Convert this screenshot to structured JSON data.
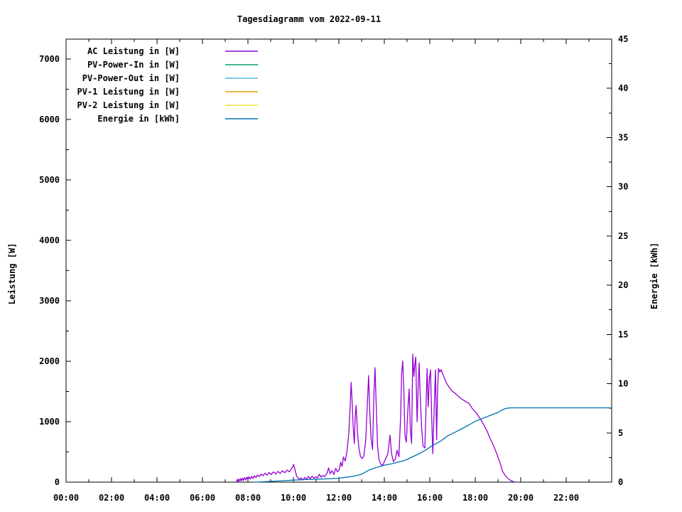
{
  "title": "Tagesdiagramm vom 2022-09-11",
  "chart_data": {
    "type": "line",
    "title": "Tagesdiagramm vom 2022-09-11",
    "x_axis": {
      "label": "",
      "range_hours": [
        0,
        24
      ],
      "major_tick_hours": 2,
      "minor_tick_hours": 1,
      "tick_labels": [
        "00:00",
        "02:00",
        "04:00",
        "06:00",
        "08:00",
        "10:00",
        "12:00",
        "14:00",
        "16:00",
        "18:00",
        "20:00",
        "22:00"
      ]
    },
    "y_left": {
      "label": "Leistung [W]",
      "range": [
        0,
        7330
      ],
      "major_tick": 1000,
      "minor_tick": 500,
      "tick_labels": [
        "0",
        "1000",
        "2000",
        "3000",
        "4000",
        "5000",
        "6000",
        "7000"
      ]
    },
    "y_right": {
      "label": "Energie [kWh]",
      "range": [
        0,
        45
      ],
      "major_tick": 5,
      "minor_tick": 2.5,
      "tick_labels": [
        "0",
        "5",
        "10",
        "15",
        "20",
        "25",
        "30",
        "35",
        "40",
        "45"
      ]
    },
    "grid": false,
    "legend_position": "top-left-inside",
    "series": [
      {
        "name": "AC Leistung in [W]",
        "color": "#9400d3",
        "axis": "left",
        "points": [
          [
            7.5,
            5
          ],
          [
            7.53,
            45
          ],
          [
            7.56,
            12
          ],
          [
            7.6,
            50
          ],
          [
            7.64,
            18
          ],
          [
            7.68,
            60
          ],
          [
            7.72,
            22
          ],
          [
            7.76,
            65
          ],
          [
            7.8,
            28
          ],
          [
            7.85,
            75
          ],
          [
            7.9,
            35
          ],
          [
            7.95,
            80
          ],
          [
            8.0,
            45
          ],
          [
            8.05,
            88
          ],
          [
            8.1,
            52
          ],
          [
            8.16,
            95
          ],
          [
            8.22,
            60
          ],
          [
            8.28,
            105
          ],
          [
            8.35,
            75
          ],
          [
            8.42,
            118
          ],
          [
            8.5,
            92
          ],
          [
            8.58,
            135
          ],
          [
            8.66,
            105
          ],
          [
            8.75,
            150
          ],
          [
            8.84,
            115
          ],
          [
            8.93,
            160
          ],
          [
            9.02,
            125
          ],
          [
            9.12,
            170
          ],
          [
            9.22,
            135
          ],
          [
            9.32,
            178
          ],
          [
            9.42,
            145
          ],
          [
            9.52,
            188
          ],
          [
            9.62,
            155
          ],
          [
            9.72,
            200
          ],
          [
            9.82,
            170
          ],
          [
            9.9,
            215
          ],
          [
            9.97,
            250
          ],
          [
            10.0,
            292
          ],
          [
            10.04,
            255
          ],
          [
            10.09,
            170
          ],
          [
            10.15,
            95
          ],
          [
            10.22,
            60
          ],
          [
            10.28,
            48
          ],
          [
            10.34,
            70
          ],
          [
            10.42,
            35
          ],
          [
            10.5,
            78
          ],
          [
            10.58,
            45
          ],
          [
            10.66,
            95
          ],
          [
            10.74,
            55
          ],
          [
            10.82,
            100
          ],
          [
            10.9,
            65
          ],
          [
            10.98,
            88
          ],
          [
            11.06,
            70
          ],
          [
            11.14,
            128
          ],
          [
            11.22,
            82
          ],
          [
            11.3,
            112
          ],
          [
            11.38,
            92
          ],
          [
            11.48,
            150
          ],
          [
            11.55,
            235
          ],
          [
            11.62,
            140
          ],
          [
            11.7,
            190
          ],
          [
            11.78,
            125
          ],
          [
            11.86,
            230
          ],
          [
            11.94,
            170
          ],
          [
            12.02,
            210
          ],
          [
            12.08,
            330
          ],
          [
            12.14,
            260
          ],
          [
            12.2,
            415
          ],
          [
            12.28,
            350
          ],
          [
            12.36,
            520
          ],
          [
            12.44,
            820
          ],
          [
            12.5,
            1280
          ],
          [
            12.54,
            1650
          ],
          [
            12.58,
            1350
          ],
          [
            12.63,
            900
          ],
          [
            12.68,
            640
          ],
          [
            12.72,
            1080
          ],
          [
            12.76,
            1270
          ],
          [
            12.82,
            820
          ],
          [
            12.88,
            560
          ],
          [
            12.95,
            430
          ],
          [
            13.02,
            390
          ],
          [
            13.1,
            430
          ],
          [
            13.18,
            700
          ],
          [
            13.26,
            1350
          ],
          [
            13.31,
            1765
          ],
          [
            13.36,
            1150
          ],
          [
            13.42,
            720
          ],
          [
            13.48,
            540
          ],
          [
            13.54,
            1450
          ],
          [
            13.59,
            1894
          ],
          [
            13.64,
            1300
          ],
          [
            13.7,
            620
          ],
          [
            13.76,
            380
          ],
          [
            13.84,
            300
          ],
          [
            13.92,
            272
          ],
          [
            14.0,
            340
          ],
          [
            14.08,
            400
          ],
          [
            14.16,
            480
          ],
          [
            14.25,
            776
          ],
          [
            14.32,
            470
          ],
          [
            14.4,
            340
          ],
          [
            14.48,
            380
          ],
          [
            14.56,
            530
          ],
          [
            14.64,
            420
          ],
          [
            14.72,
            1100
          ],
          [
            14.76,
            1780
          ],
          [
            14.81,
            2005
          ],
          [
            14.86,
            1500
          ],
          [
            14.91,
            760
          ],
          [
            14.97,
            660
          ],
          [
            15.03,
            1180
          ],
          [
            15.09,
            1541
          ],
          [
            15.15,
            830
          ],
          [
            15.2,
            640
          ],
          [
            15.25,
            2117
          ],
          [
            15.3,
            1750
          ],
          [
            15.34,
            1950
          ],
          [
            15.38,
            2070
          ],
          [
            15.44,
            1000
          ],
          [
            15.48,
            1500
          ],
          [
            15.53,
            1976
          ],
          [
            15.58,
            1400
          ],
          [
            15.64,
            900
          ],
          [
            15.7,
            600
          ],
          [
            15.78,
            565
          ],
          [
            15.84,
            1300
          ],
          [
            15.88,
            1882
          ],
          [
            15.93,
            1250
          ],
          [
            15.98,
            1700
          ],
          [
            16.03,
            1859
          ],
          [
            16.08,
            1100
          ],
          [
            16.13,
            470
          ],
          [
            16.19,
            1200
          ],
          [
            16.25,
            1859
          ],
          [
            16.3,
            700
          ],
          [
            16.34,
            1500
          ],
          [
            16.38,
            1882
          ],
          [
            16.44,
            1820
          ],
          [
            16.5,
            1859
          ],
          [
            16.56,
            1800
          ],
          [
            16.64,
            1720
          ],
          [
            16.72,
            1650
          ],
          [
            16.8,
            1600
          ],
          [
            16.9,
            1545
          ],
          [
            17.0,
            1500
          ],
          [
            17.12,
            1468
          ],
          [
            17.25,
            1420
          ],
          [
            17.4,
            1375
          ],
          [
            17.55,
            1340
          ],
          [
            17.72,
            1306
          ],
          [
            17.88,
            1210
          ],
          [
            18.03,
            1153
          ],
          [
            18.2,
            1059
          ],
          [
            18.35,
            965
          ],
          [
            18.5,
            860
          ],
          [
            18.66,
            718
          ],
          [
            18.82,
            590
          ],
          [
            18.97,
            447
          ],
          [
            19.1,
            310
          ],
          [
            19.19,
            188
          ],
          [
            19.3,
            120
          ],
          [
            19.44,
            59
          ],
          [
            19.56,
            28
          ],
          [
            19.7,
            5
          ]
        ]
      },
      {
        "name": "PV-Power-In in [W]",
        "color": "#009e73",
        "axis": "left",
        "points": []
      },
      {
        "name": "PV-Power-Out in [W]",
        "color": "#56b4e9",
        "axis": "left",
        "points": []
      },
      {
        "name": "PV-1 Leistung in [W]",
        "color": "#e69f00",
        "axis": "left",
        "points": []
      },
      {
        "name": "PV-2 Leistung in [W]",
        "color": "#f0e442",
        "axis": "left",
        "points": []
      },
      {
        "name": "Energie in [kWh]",
        "color": "#0072b2",
        "axis": "right",
        "points": [
          [
            8.25,
            0
          ],
          [
            8.6,
            0.03
          ],
          [
            9.0,
            0.08
          ],
          [
            9.5,
            0.14
          ],
          [
            10.0,
            0.2
          ],
          [
            10.5,
            0.25
          ],
          [
            11.0,
            0.3
          ],
          [
            11.5,
            0.34
          ],
          [
            12.0,
            0.4
          ],
          [
            12.4,
            0.52
          ],
          [
            12.7,
            0.62
          ],
          [
            13.0,
            0.8
          ],
          [
            13.3,
            1.2
          ],
          [
            13.6,
            1.45
          ],
          [
            14.0,
            1.72
          ],
          [
            14.3,
            1.85
          ],
          [
            14.6,
            2.02
          ],
          [
            14.9,
            2.2
          ],
          [
            15.2,
            2.53
          ],
          [
            15.5,
            2.85
          ],
          [
            15.85,
            3.3
          ],
          [
            16.1,
            3.7
          ],
          [
            16.5,
            4.2
          ],
          [
            16.8,
            4.72
          ],
          [
            17.1,
            5.05
          ],
          [
            17.4,
            5.42
          ],
          [
            17.7,
            5.78
          ],
          [
            18.0,
            6.18
          ],
          [
            18.35,
            6.5
          ],
          [
            18.7,
            6.82
          ],
          [
            19.0,
            7.08
          ],
          [
            19.15,
            7.3
          ],
          [
            19.3,
            7.45
          ],
          [
            19.45,
            7.53
          ],
          [
            19.6,
            7.55
          ],
          [
            20.5,
            7.55
          ],
          [
            22.0,
            7.55
          ],
          [
            24.0,
            7.55
          ]
        ]
      }
    ],
    "colors": {
      "background": "#ffffff",
      "axis": "#000000",
      "ac_leistung": "#9400d3",
      "pv_power_in": "#009e73",
      "pv_power_out": "#56b4e9",
      "pv1_leistung": "#e69f00",
      "pv2_leistung": "#f0e442",
      "energie": "#0072b2"
    }
  }
}
